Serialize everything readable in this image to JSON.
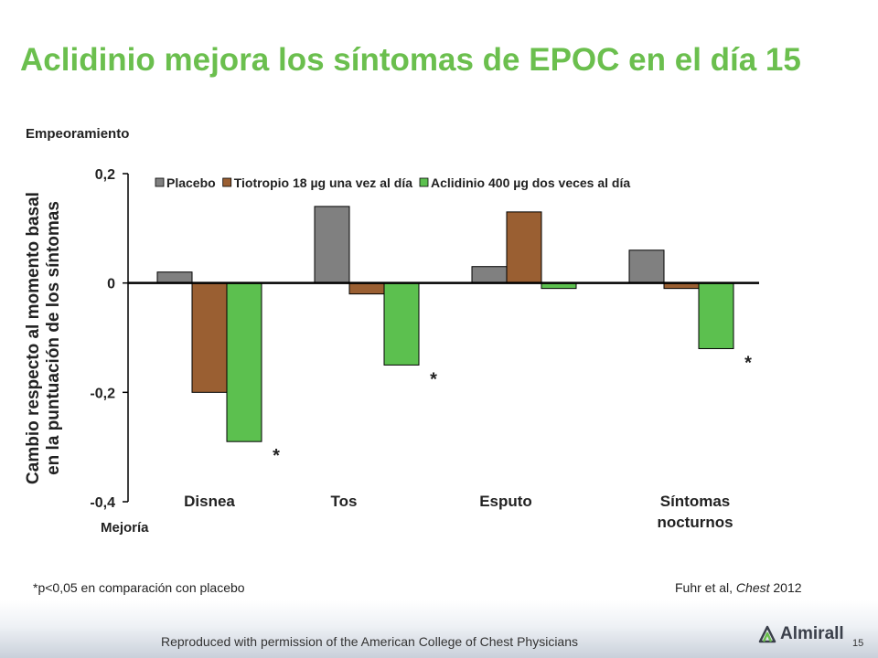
{
  "slide": {
    "title": "Aclidinio mejora los síntomas de EPOC en el día 15",
    "label_worse": "Empeoramiento",
    "label_better": "Mejoría",
    "footnote": "*p<0,05 en comparación con placebo",
    "citation_author": "Fuhr et al, ",
    "citation_journal": "Chest",
    "citation_year": " 2012",
    "reproduced": "Reproduced with permission of the American College of Chest Physicians",
    "brand": "Almirall",
    "page_number": "15"
  },
  "chart_data": {
    "type": "bar",
    "title": "",
    "ylabel_lines": [
      "Cambio respecto al momento basal",
      "en la puntuación de los síntomas"
    ],
    "ylim": [
      -0.4,
      0.2
    ],
    "yticks": [
      0.2,
      0,
      -0.2,
      -0.4
    ],
    "ytick_labels": [
      "0,2",
      "0",
      "-0,2",
      "-0,4"
    ],
    "categories": [
      [
        "Disnea"
      ],
      [
        "Tos"
      ],
      [
        "Esputo"
      ],
      [
        "Síntomas",
        "nocturnos"
      ]
    ],
    "legend_position": "top",
    "grid": false,
    "series": [
      {
        "name": "Placebo",
        "color": "#808080",
        "values": [
          0.02,
          0.14,
          0.03,
          0.06
        ]
      },
      {
        "name": "Tiotropio 18 µg una vez al día",
        "color": "#9a5f32",
        "values": [
          -0.2,
          -0.02,
          0.13,
          -0.01
        ]
      },
      {
        "name": "Aclidinio 400 µg dos veces al día",
        "color": "#5cc04f",
        "values": [
          -0.29,
          -0.15,
          -0.01,
          -0.12
        ]
      }
    ],
    "significance_marker": "*",
    "significant": [
      true,
      true,
      false,
      true
    ]
  }
}
